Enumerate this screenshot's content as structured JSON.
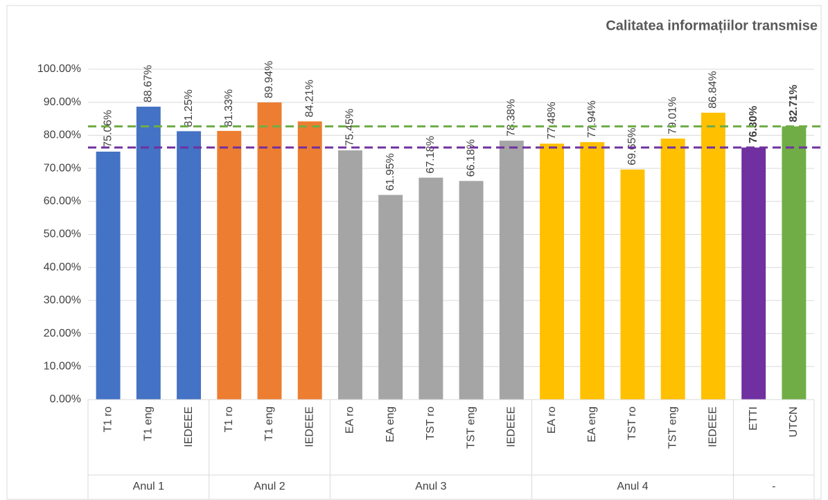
{
  "chart_data": {
    "type": "bar",
    "title": "Calitatea informațiilor transmise",
    "categories": [
      "T1 ro",
      "T1 eng",
      "IEDEEE",
      "T1 ro",
      "T1 eng",
      "IEDEEE",
      "EA ro",
      "EA eng",
      "TST ro",
      "TST eng",
      "IEDEEE",
      "EA ro",
      "EA eng",
      "TST ro",
      "TST eng",
      "IEDEEE",
      "ETTI",
      "UTCN"
    ],
    "groups": [
      "Anul 1",
      "Anul 2",
      "Anul 3",
      "Anul 4",
      "-"
    ],
    "group_sizes": [
      3,
      3,
      5,
      5,
      2
    ],
    "values": [
      75.06,
      88.67,
      81.25,
      81.33,
      89.94,
      84.21,
      75.45,
      61.95,
      67.18,
      66.18,
      78.38,
      77.48,
      77.94,
      69.65,
      79.01,
      86.84,
      76.3,
      82.71
    ],
    "value_labels": [
      "75.06%",
      "88.67%",
      "81.25%",
      "81.33%",
      "89.94%",
      "84.21%",
      "75.45%",
      "61.95%",
      "67.18%",
      "66.18%",
      "78.38%",
      "77.48%",
      "77.94%",
      "69.65%",
      "79.01%",
      "86.84%",
      "76.30%",
      "82.71%"
    ],
    "bold_labels": [
      16,
      17
    ],
    "colors": [
      "#4472c4",
      "#4472c4",
      "#4472c4",
      "#ed7d31",
      "#ed7d31",
      "#ed7d31",
      "#a5a5a5",
      "#a5a5a5",
      "#a5a5a5",
      "#a5a5a5",
      "#a5a5a5",
      "#ffc000",
      "#ffc000",
      "#ffc000",
      "#ffc000",
      "#ffc000",
      "#7030a0",
      "#70ad47"
    ],
    "reference_lines": [
      {
        "value": 82.71,
        "color": "#70ad47"
      },
      {
        "value": 76.3,
        "color": "#7030a0"
      }
    ],
    "ylim": [
      0,
      100
    ],
    "yticks": [
      {
        "value": 0,
        "label": "0.00%"
      },
      {
        "value": 10,
        "label": "10.00%"
      },
      {
        "value": 20,
        "label": "20.00%"
      },
      {
        "value": 30,
        "label": "30.00%"
      },
      {
        "value": 40,
        "label": "40.00%"
      },
      {
        "value": 50,
        "label": "50.00%"
      },
      {
        "value": 60,
        "label": "60.00%"
      },
      {
        "value": 70,
        "label": "70.00%"
      },
      {
        "value": 80,
        "label": "80.00%"
      },
      {
        "value": 90,
        "label": "90.00%"
      },
      {
        "value": 100,
        "label": "100.00%"
      }
    ],
    "grid": true
  }
}
